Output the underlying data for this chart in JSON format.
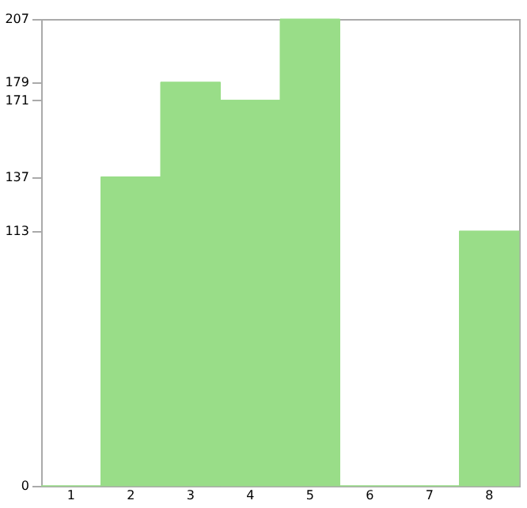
{
  "chart_data": {
    "type": "bar",
    "categories": [
      "1",
      "2",
      "3",
      "4",
      "5",
      "6",
      "7",
      "8"
    ],
    "values": [
      0,
      137,
      179,
      171,
      207,
      0,
      0,
      113
    ],
    "color": "#99dd88",
    "ylim": [
      0,
      207
    ],
    "yticks": [
      0,
      113,
      137,
      171,
      179,
      207
    ],
    "grid": false
  }
}
